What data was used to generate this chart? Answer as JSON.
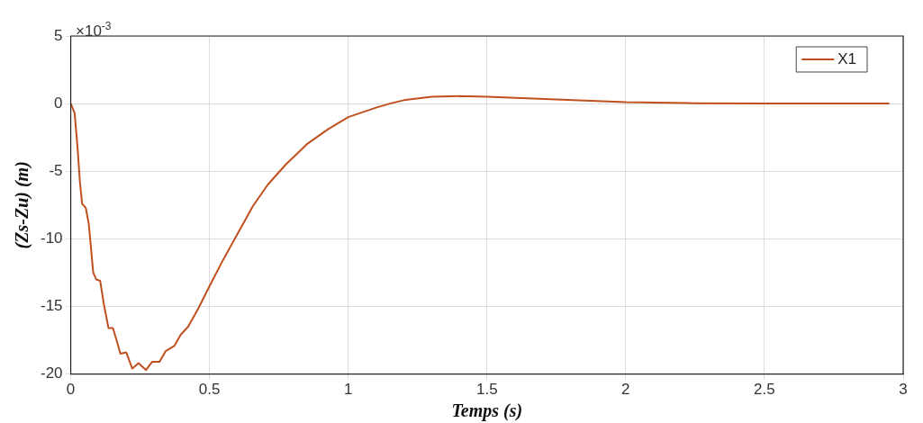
{
  "chart_data": {
    "type": "line",
    "xlabel": "Temps (s)",
    "ylabel": "(Zs-Zu) (m)",
    "annotations": [
      "×10$^{-3}$"
    ],
    "x": [
      0,
      0.014,
      0.025,
      0.033,
      0.041,
      0.054,
      0.065,
      0.081,
      0.092,
      0.106,
      0.119,
      0.136,
      0.152,
      0.168,
      0.179,
      0.2,
      0.222,
      0.244,
      0.271,
      0.293,
      0.32,
      0.342,
      0.374,
      0.396,
      0.423,
      0.461,
      0.5,
      0.548,
      0.602,
      0.656,
      0.71,
      0.775,
      0.851,
      0.927,
      1.0,
      1.1,
      1.15,
      1.2,
      1.3,
      1.4,
      1.5,
      1.75,
      2,
      2.25,
      2.5,
      2.95
    ],
    "series": [
      {
        "name": "X1",
        "color": "#c0501f",
        "values": [
          0,
          -0.7,
          -3.4,
          -5.8,
          -7.4,
          -7.7,
          -8.9,
          -12.5,
          -13,
          -13.1,
          -14.8,
          -16.6,
          -16.6,
          -17.7,
          -18.5,
          -18.4,
          -19.6,
          -19.2,
          -19.7,
          -19.1,
          -19.1,
          -18.3,
          -17.9,
          -17.1,
          -16.5,
          -15.1,
          -13.5,
          -11.6,
          -9.6,
          -7.6,
          -6,
          -4.5,
          -3,
          -1.9,
          -1,
          -0.3,
          0,
          0.25,
          0.5,
          0.55,
          0.5,
          0.3,
          0.1,
          0.03,
          0,
          0
        ]
      }
    ],
    "xlim": [
      0,
      3
    ],
    "xticks": [
      0,
      0.5,
      1,
      1.5,
      2,
      2.5,
      3
    ],
    "ylim": [
      -20,
      5
    ],
    "yticks": [
      -20,
      -15,
      -10,
      -5,
      0,
      5
    ],
    "grid": true,
    "legend": "top right",
    "marker": "none",
    "line_style": "solid"
  }
}
